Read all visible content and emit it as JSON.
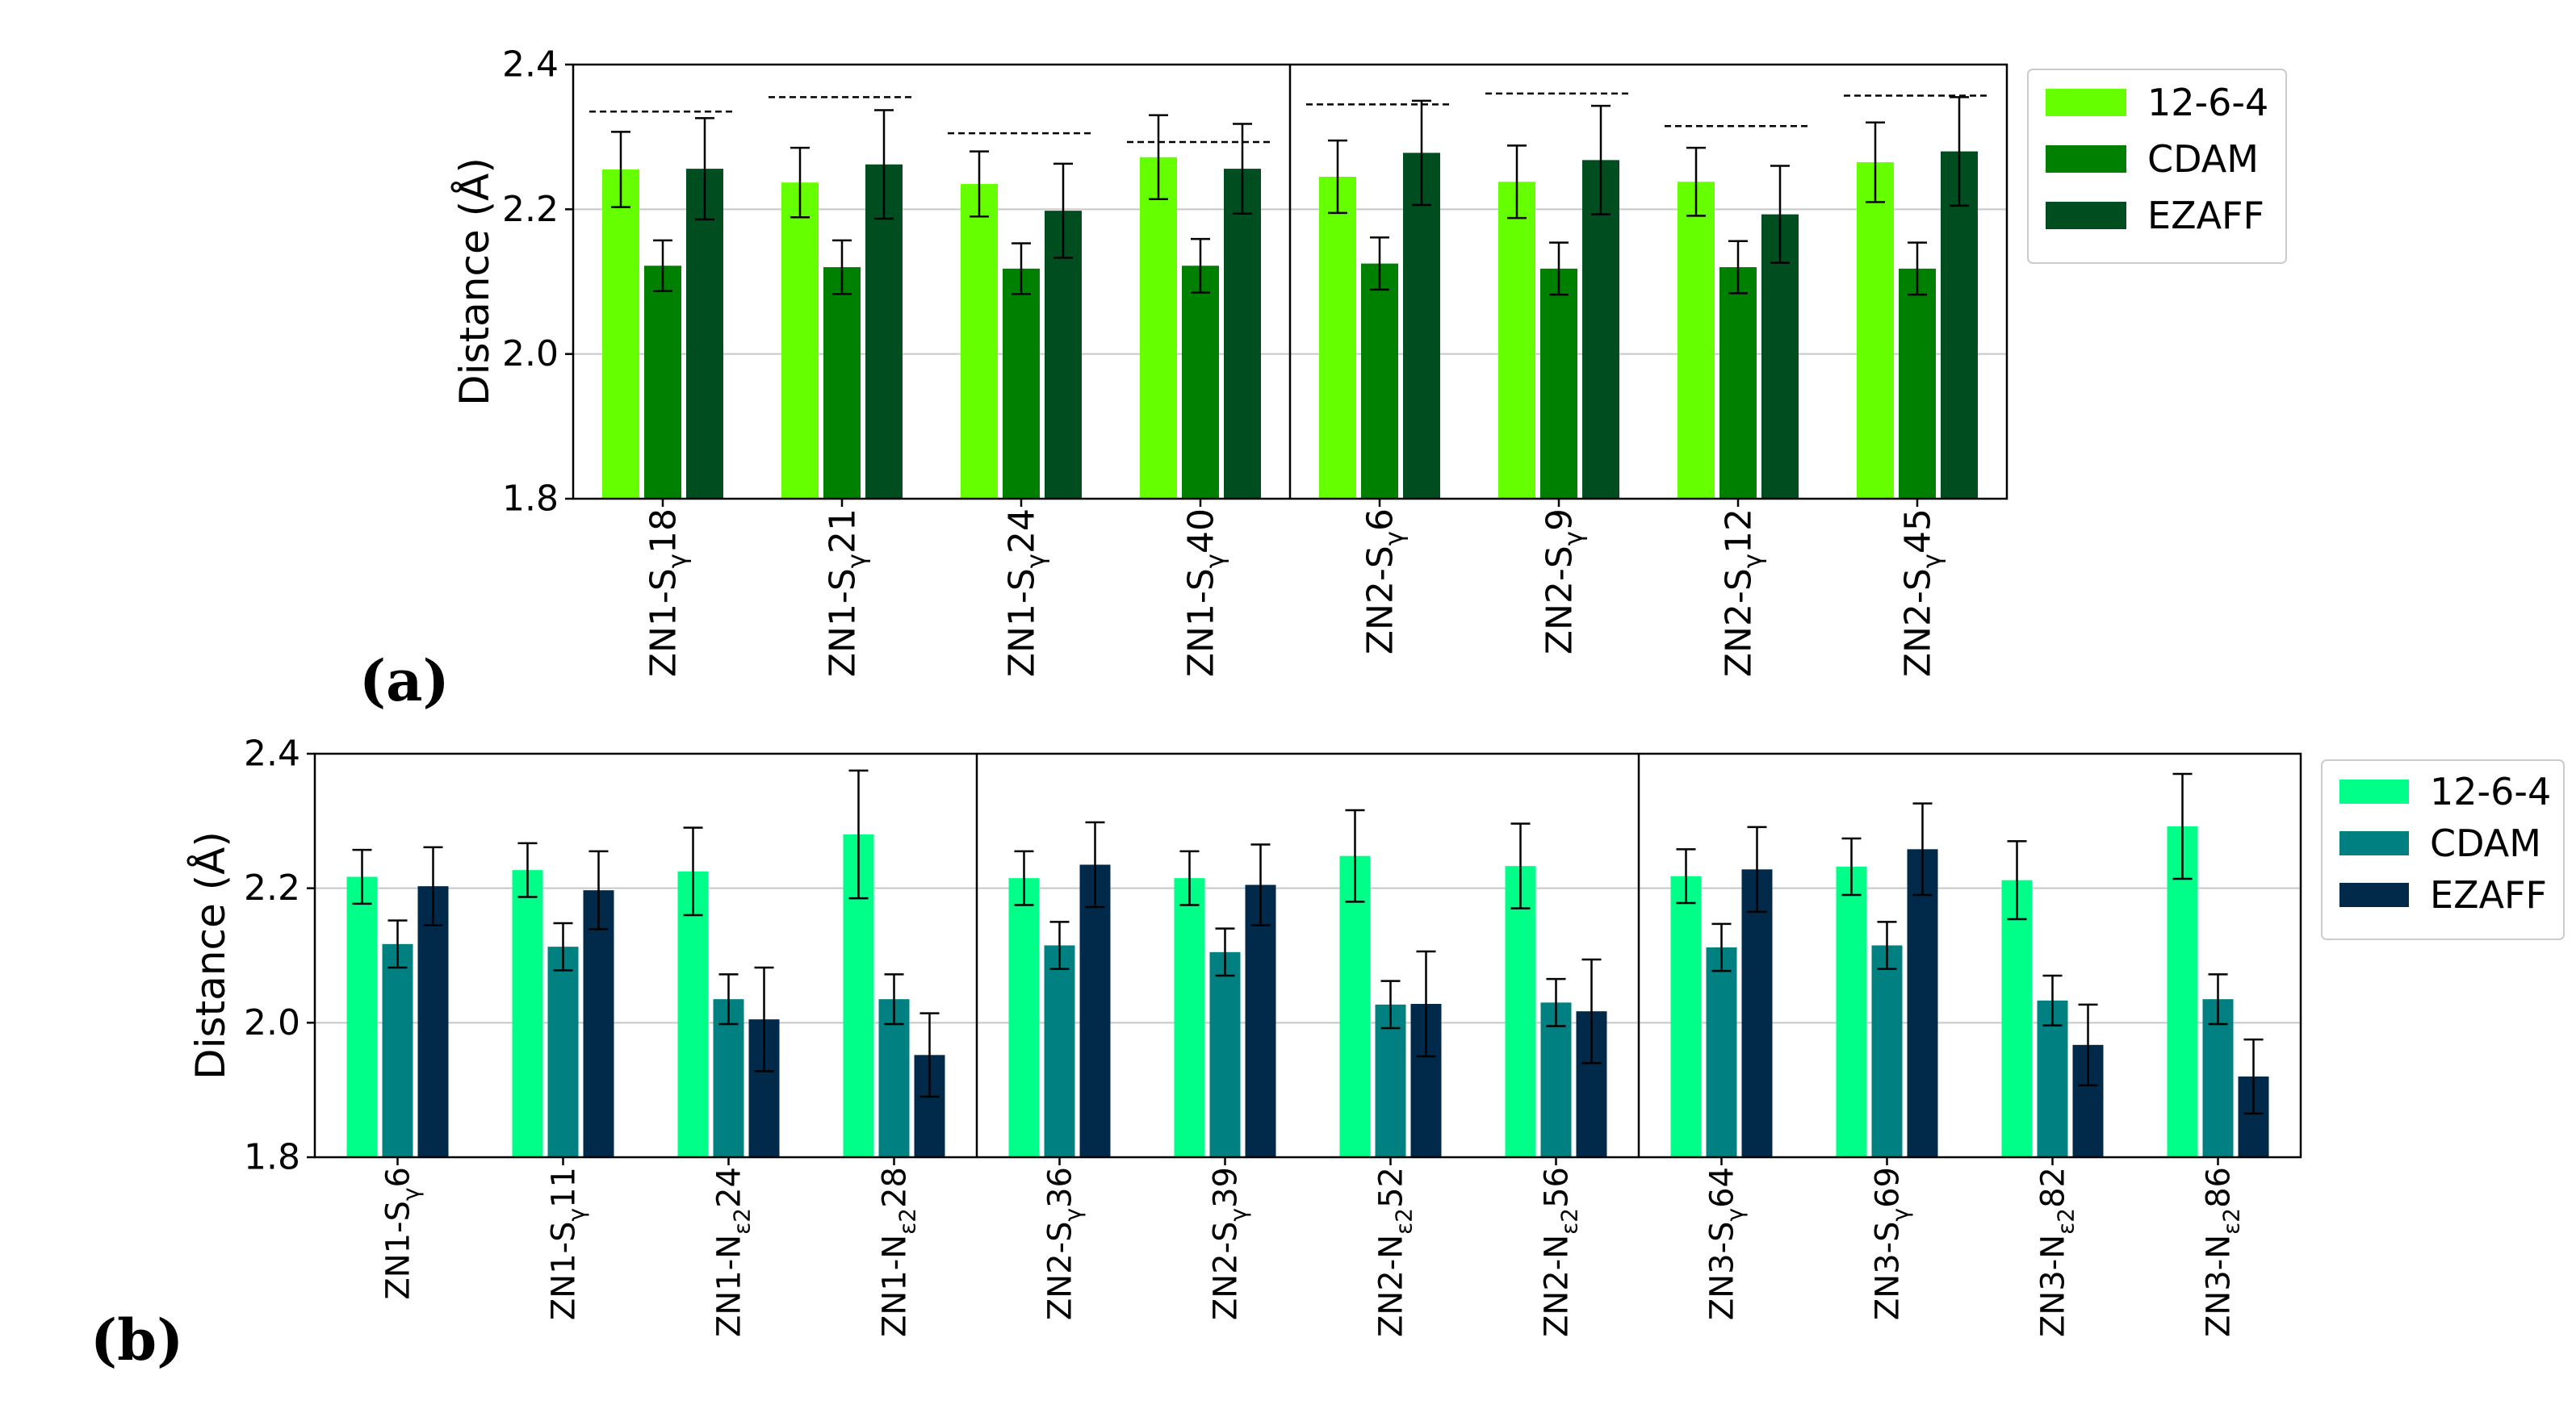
{
  "chart_data": [
    {
      "id": "a",
      "panel_label": "(a)",
      "type": "bar",
      "ylabel": "Distance (Å)",
      "ylim": [
        1.8,
        2.4
      ],
      "yticks": [
        1.8,
        2.0,
        2.2,
        2.4
      ],
      "ytick_labels": [
        "1.8",
        "2.0",
        "2.2",
        "2.4"
      ],
      "grid": true,
      "legend_position": "right",
      "categories": [
        {
          "pre": "ZN1-S",
          "sub": "γ",
          "post": "18"
        },
        {
          "pre": "ZN1-S",
          "sub": "γ",
          "post": "21"
        },
        {
          "pre": "ZN1-S",
          "sub": "γ",
          "post": "24"
        },
        {
          "pre": "ZN1-S",
          "sub": "γ",
          "post": "40"
        },
        {
          "pre": "ZN2-S",
          "sub": "γ",
          "post": "6"
        },
        {
          "pre": "ZN2-S",
          "sub": "γ",
          "post": "9"
        },
        {
          "pre": "ZN2-S",
          "sub": "γ",
          "post": "12"
        },
        {
          "pre": "ZN2-S",
          "sub": "γ",
          "post": "45"
        }
      ],
      "group_separators_after": [
        4
      ],
      "reference": [
        2.335,
        2.355,
        2.305,
        2.293,
        2.345,
        2.36,
        2.315,
        2.357
      ],
      "series": [
        {
          "name": "12-6-4",
          "color": "#66ff00",
          "values": [
            2.255,
            2.237,
            2.235,
            2.272,
            2.245,
            2.238,
            2.238,
            2.265
          ],
          "errors": [
            0.052,
            0.048,
            0.045,
            0.058,
            0.05,
            0.05,
            0.047,
            0.055
          ]
        },
        {
          "name": "CDAM",
          "color": "#008000",
          "values": [
            2.122,
            2.12,
            2.118,
            2.122,
            2.125,
            2.118,
            2.12,
            2.118
          ],
          "errors": [
            0.035,
            0.037,
            0.035,
            0.037,
            0.036,
            0.036,
            0.036,
            0.036
          ]
        },
        {
          "name": "EZAFF",
          "color": "#004d1f",
          "values": [
            2.256,
            2.262,
            2.198,
            2.256,
            2.278,
            2.268,
            2.193,
            2.28
          ],
          "errors": [
            0.07,
            0.075,
            0.065,
            0.062,
            0.072,
            0.075,
            0.067,
            0.075
          ]
        }
      ]
    },
    {
      "id": "b",
      "panel_label": "(b)",
      "type": "bar",
      "ylabel": "Distance (Å)",
      "ylim": [
        1.8,
        2.4
      ],
      "yticks": [
        1.8,
        2.0,
        2.2,
        2.4
      ],
      "ytick_labels": [
        "1.8",
        "2.0",
        "2.2",
        "2.4"
      ],
      "grid": true,
      "legend_position": "right",
      "categories": [
        {
          "pre": "ZN1-S",
          "sub": "γ",
          "post": "6"
        },
        {
          "pre": "ZN1-S",
          "sub": "γ",
          "post": "11"
        },
        {
          "pre": "ZN1-N",
          "sub": "ε2",
          "post": "24"
        },
        {
          "pre": "ZN1-N",
          "sub": "ε2",
          "post": "28"
        },
        {
          "pre": "ZN2-S",
          "sub": "γ",
          "post": "36"
        },
        {
          "pre": "ZN2-S",
          "sub": "γ",
          "post": "39"
        },
        {
          "pre": "ZN2-N",
          "sub": "ε2",
          "post": "52"
        },
        {
          "pre": "ZN2-N",
          "sub": "ε2",
          "post": "56"
        },
        {
          "pre": "ZN3-S",
          "sub": "γ",
          "post": "64"
        },
        {
          "pre": "ZN3-S",
          "sub": "γ",
          "post": "69"
        },
        {
          "pre": "ZN3-N",
          "sub": "ε2",
          "post": "82"
        },
        {
          "pre": "ZN3-N",
          "sub": "ε2",
          "post": "86"
        }
      ],
      "group_separators_after": [
        4,
        8
      ],
      "series": [
        {
          "name": "12-6-4",
          "color": "#00ff88",
          "values": [
            2.217,
            2.227,
            2.225,
            2.28,
            2.215,
            2.215,
            2.248,
            2.233,
            2.218,
            2.232,
            2.212,
            2.292
          ],
          "errors": [
            0.04,
            0.04,
            0.065,
            0.095,
            0.04,
            0.04,
            0.068,
            0.063,
            0.04,
            0.042,
            0.058,
            0.078
          ]
        },
        {
          "name": "CDAM",
          "color": "#008080",
          "values": [
            2.117,
            2.113,
            2.035,
            2.035,
            2.115,
            2.105,
            2.027,
            2.03,
            2.112,
            2.115,
            2.033,
            2.035
          ],
          "errors": [
            0.035,
            0.035,
            0.037,
            0.037,
            0.035,
            0.035,
            0.035,
            0.035,
            0.035,
            0.035,
            0.037,
            0.037
          ]
        },
        {
          "name": "EZAFF",
          "color": "#012a4a",
          "values": [
            2.203,
            2.197,
            2.005,
            1.952,
            2.235,
            2.205,
            2.028,
            2.017,
            2.228,
            2.258,
            1.967,
            1.92
          ],
          "errors": [
            0.058,
            0.058,
            0.077,
            0.062,
            0.063,
            0.06,
            0.078,
            0.077,
            0.063,
            0.068,
            0.06,
            0.055
          ]
        }
      ]
    }
  ]
}
